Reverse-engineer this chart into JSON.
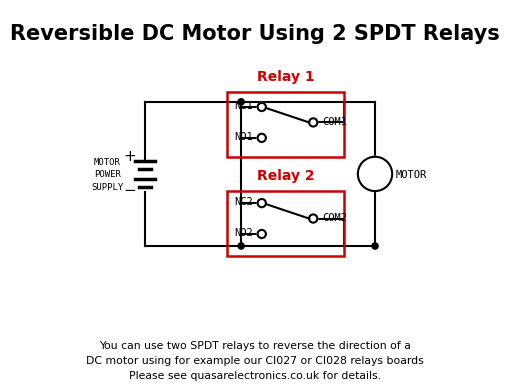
{
  "title": "Reversible DC Motor Using 2 SPDT Relays",
  "title_fontsize": 15,
  "background_color": "#ffffff",
  "line_color": "#000000",
  "relay_box_color": "#cc0000",
  "relay1_label": "Relay 1",
  "relay2_label": "Relay 2",
  "footer_text": "You can use two SPDT relays to reverse the direction of a\nDC motor using for example our CI027 or CI028 relays boards\nPlease see quasarelectronics.co.uk for details.",
  "motor_label": "MOTOR",
  "supply_label": "MOTOR\nPOWER\nSUPPLY"
}
